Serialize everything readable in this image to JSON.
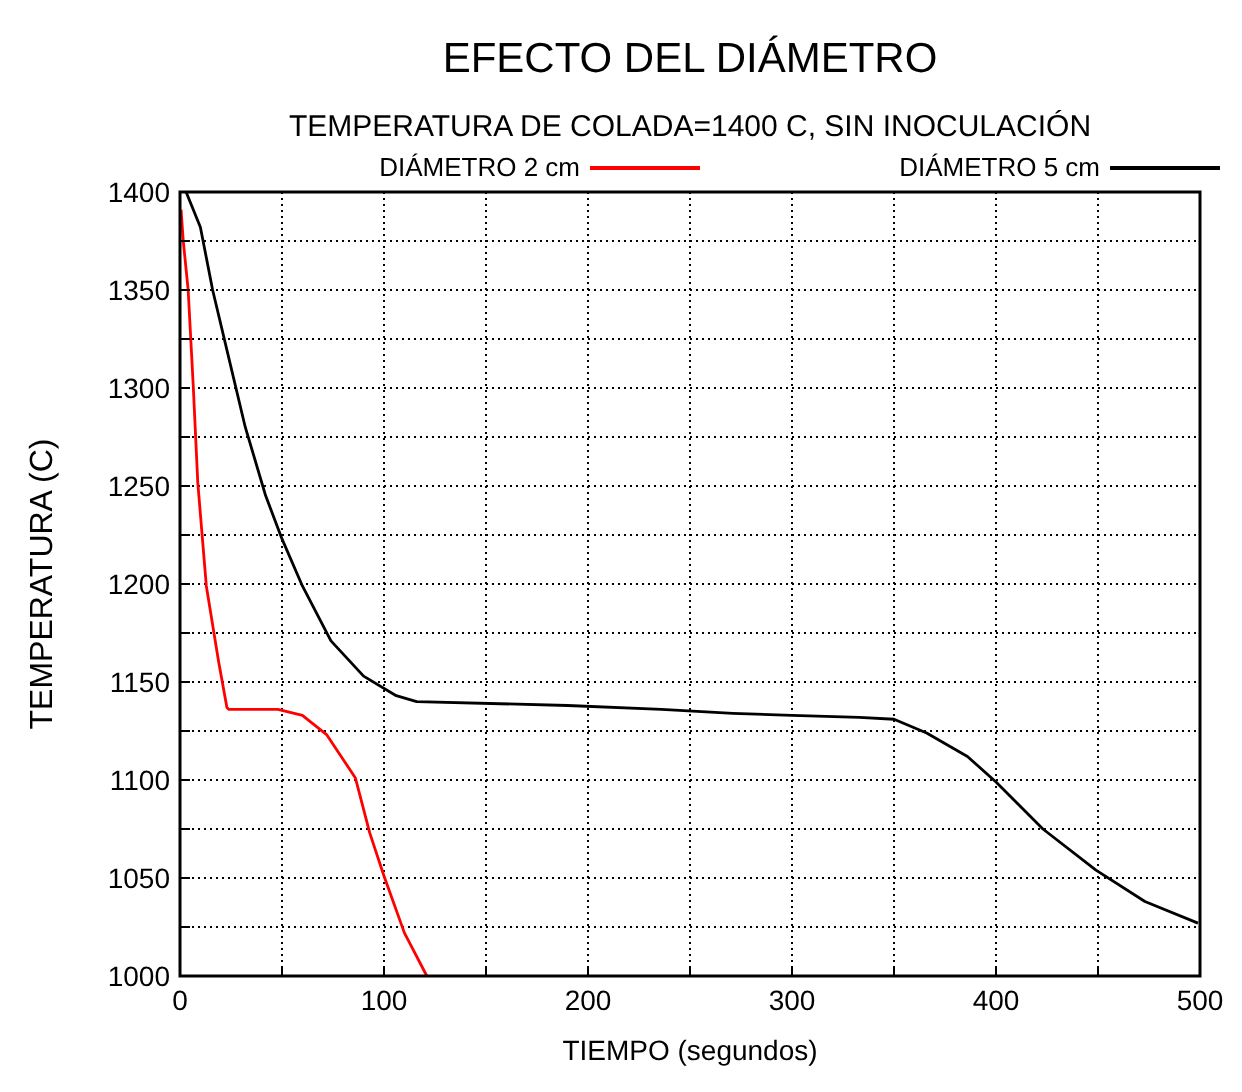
{
  "chart_data": {
    "type": "line",
    "title": "EFECTO DEL DIÁMETRO",
    "subtitle": "TEMPERATURA DE COLADA=1400 C, SIN INOCULACIÓN",
    "xlabel": "TIEMPO (segundos)",
    "ylabel": "TEMPERATURA (C)",
    "xlim": [
      0,
      500
    ],
    "ylim": [
      1000,
      1400
    ],
    "xticks": [
      0,
      {
        "value": 50,
        "label": null
      },
      100,
      {
        "value": 150,
        "label": null
      },
      200,
      {
        "value": 250,
        "label": null
      },
      300,
      {
        "value": 350,
        "label": null
      },
      400,
      {
        "value": 450,
        "label": null
      },
      500
    ],
    "yticks": [
      1000,
      {
        "value": 1025,
        "label": null
      },
      1050,
      {
        "value": 1075,
        "label": null
      },
      1100,
      {
        "value": 1125,
        "label": null
      },
      1150,
      {
        "value": 1175,
        "label": null
      },
      1200,
      {
        "value": 1225,
        "label": null
      },
      1250,
      {
        "value": 1275,
        "label": null
      },
      1300,
      {
        "value": 1325,
        "label": null
      },
      1350,
      {
        "value": 1375,
        "label": null
      },
      1400
    ],
    "grid": true,
    "legend": "top",
    "line_style": "solid",
    "marker": "none",
    "series": [
      {
        "name": "DIÁMETRO 2 cm",
        "color": "#ff0000",
        "x": [
          0.5,
          1.6,
          4,
          6.5,
          8.7,
          12.9,
          19,
          23,
          24,
          48,
          60,
          72,
          86,
          93,
          100,
          110,
          121
        ],
        "values": [
          1391,
          1375,
          1350,
          1301,
          1252,
          1199,
          1160,
          1137,
          1136,
          1136,
          1133,
          1123,
          1101,
          1073,
          1051,
          1022,
          1000
        ]
      },
      {
        "name": "DIÁMETRO 5 cm",
        "color": "#000000",
        "x": [
          3,
          10,
          16,
          24,
          32,
          42,
          50,
          60,
          74,
          90,
          106,
          116,
          190,
          236,
          271,
          300,
          333,
          350,
          366,
          386,
          400,
          423,
          449,
          473,
          499
        ],
        "values": [
          1400,
          1382,
          1350,
          1315,
          1280,
          1245,
          1223,
          1199,
          1171,
          1153,
          1143,
          1140,
          1138,
          1136,
          1134,
          1133,
          1132,
          1131,
          1124,
          1112,
          1099,
          1075,
          1054,
          1038,
          1027
        ]
      }
    ]
  }
}
